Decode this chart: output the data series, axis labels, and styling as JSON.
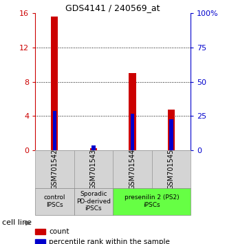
{
  "title": "GDS4141 / 240569_at",
  "samples": [
    "GSM701542",
    "GSM701543",
    "GSM701544",
    "GSM701545"
  ],
  "count_values": [
    15.6,
    0.25,
    9.0,
    4.7
  ],
  "percentile_values": [
    28.5,
    3.5,
    26.5,
    22.5
  ],
  "ylim_left": [
    0,
    16
  ],
  "ylim_right": [
    0,
    100
  ],
  "yticks_left": [
    0,
    4,
    8,
    12,
    16
  ],
  "yticks_right": [
    0,
    25,
    50,
    75,
    100
  ],
  "ytick_labels_right": [
    "0",
    "25",
    "50",
    "75",
    "100%"
  ],
  "bar_color_count": "#cc0000",
  "bar_color_percentile": "#0000cc",
  "cell_line_groups": [
    {
      "label": "control\nIPSCs",
      "start": 0,
      "end": 1,
      "color": "#d4d4d4"
    },
    {
      "label": "Sporadic\nPD-derived\niPSCs",
      "start": 1,
      "end": 2,
      "color": "#d4d4d4"
    },
    {
      "label": "presenilin 2 (PS2)\niPSCs",
      "start": 2,
      "end": 4,
      "color": "#66ff44"
    }
  ],
  "legend_items": [
    {
      "color": "#cc0000",
      "label": "count"
    },
    {
      "color": "#0000cc",
      "label": "percentile rank within the sample"
    }
  ],
  "cell_line_label": "cell line",
  "bar_width": 0.18
}
